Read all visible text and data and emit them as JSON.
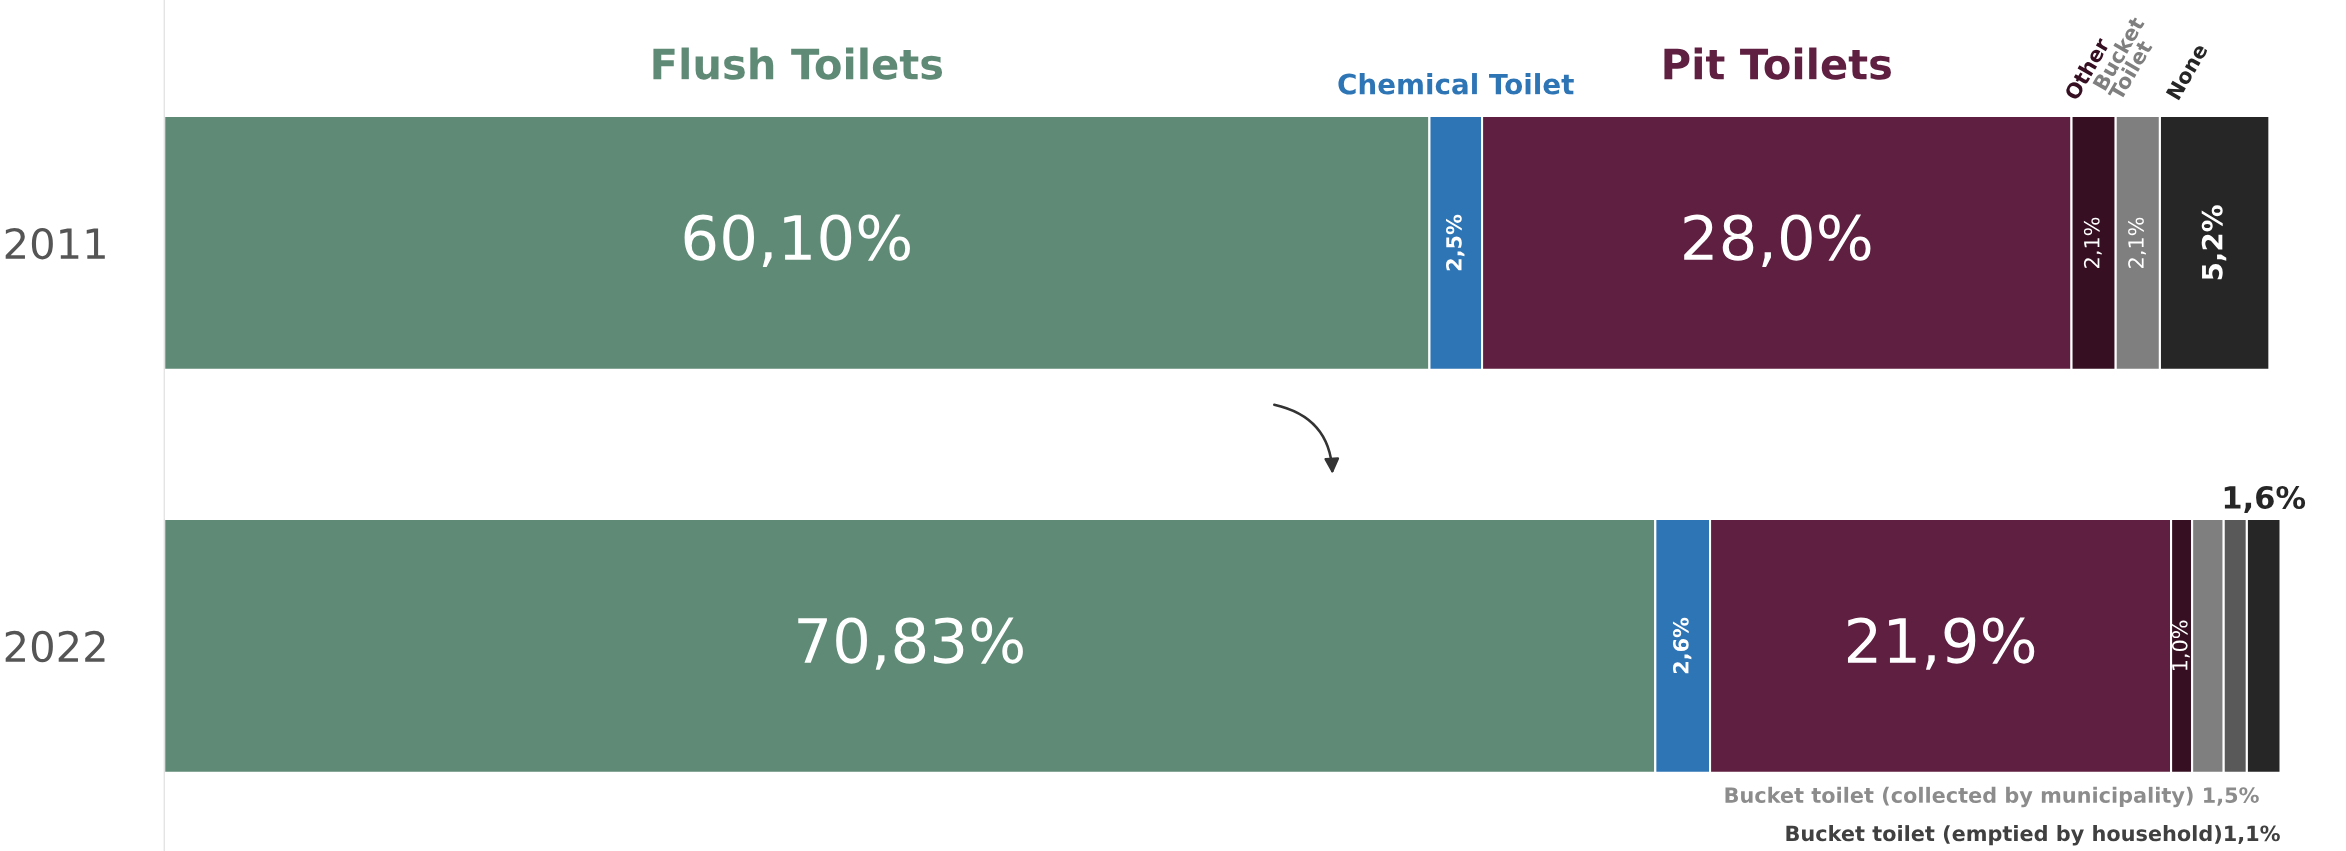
{
  "chart_data": {
    "type": "bar",
    "orientation": "horizontal",
    "stacked": true,
    "categories": [
      "2011",
      "2022"
    ],
    "series": [
      {
        "name": "Flush Toilets",
        "color": "#5f8a76",
        "values": [
          60.1,
          70.83
        ],
        "value_labels": [
          "60,10%",
          "70,83%"
        ]
      },
      {
        "name": "Chemical Toilet",
        "color": "#2e75b6",
        "values": [
          2.5,
          2.6
        ],
        "value_labels": [
          "2,5%",
          "2,6%"
        ]
      },
      {
        "name": "Pit Toilets",
        "color": "#5f1f40",
        "values": [
          28.0,
          21.9
        ],
        "value_labels": [
          "28,0%",
          "21,9%"
        ]
      },
      {
        "name": "Other",
        "color": "#361022",
        "values": [
          2.1,
          1.0
        ],
        "value_labels": [
          "2,1%",
          "1,0%"
        ]
      },
      {
        "name": "Bucket Toilet",
        "color": "#7f7f7f",
        "values": [
          2.1,
          1.5
        ],
        "value_labels": [
          "2,1%",
          null
        ]
      },
      {
        "color": "#595959",
        "values": [
          null,
          1.1
        ],
        "value_labels": [
          null,
          null
        ]
      },
      {
        "name": "None",
        "color": "#262626",
        "values": [
          5.2,
          1.6
        ],
        "value_labels": [
          "5,2%",
          "1,6%"
        ]
      }
    ],
    "annotations": [
      "Bucket toilet (collected by municipality) 1,5%",
      "Bucket toilet (emptied by household)1,1%"
    ],
    "legend": false
  }
}
